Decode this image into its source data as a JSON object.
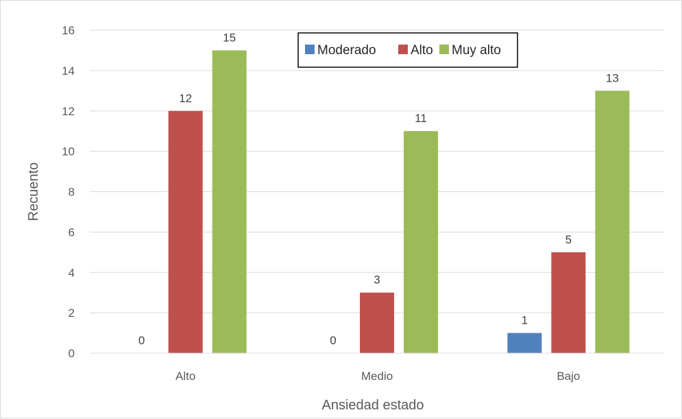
{
  "chart_data": {
    "type": "bar",
    "title": "",
    "xlabel": "Ansiedad estado",
    "ylabel": "Recuento",
    "categories": [
      "Alto",
      "Medio",
      "Bajo"
    ],
    "ylim": [
      0,
      16
    ],
    "yticks": [
      0,
      2,
      4,
      6,
      8,
      10,
      12,
      14,
      16
    ],
    "grid": true,
    "legend": "top-center",
    "series": [
      {
        "name": "Moderado",
        "color": "#4f81bd",
        "values": [
          0,
          0,
          1
        ]
      },
      {
        "name": "Alto",
        "color": "#c0504d",
        "values": [
          12,
          3,
          5
        ]
      },
      {
        "name": "Muy alto",
        "color": "#9bbb59",
        "values": [
          15,
          11,
          13
        ]
      }
    ]
  }
}
